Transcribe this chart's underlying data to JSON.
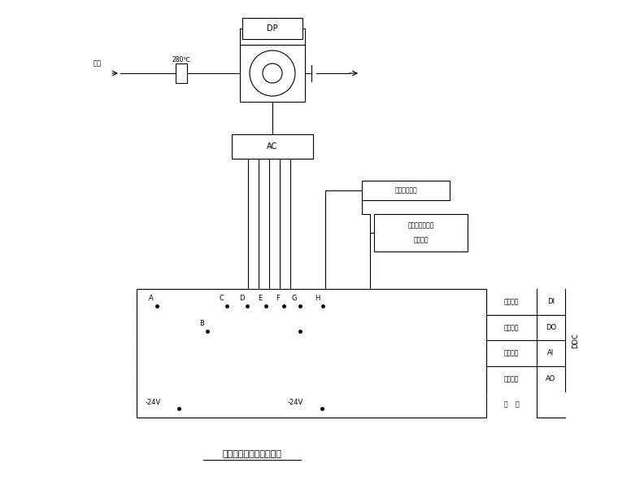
{
  "title": "消防排烟风机自控原理图",
  "bg_color": "#ffffff",
  "line_color": "#000000",
  "fan_label": "AC",
  "dp_label": "DP",
  "temp_label": "280℃",
  "smoke_label": "排烟",
  "elec_control_label": "电动调节阀口",
  "fire_control_label1": "消防火灾控制室",
  "fire_control_label2": "火灾信号",
  "row1_label": "数字输入",
  "row1_code": "DI",
  "row2_label": "数字输出",
  "row2_code": "DO",
  "row3_label": "模拟输入",
  "row3_code": "AI",
  "row4_label": "模拟输出",
  "row4_code": "AO",
  "row5_label": "电    源",
  "ddc_label": "DDC",
  "power1_label": "-24V",
  "power2_label": "-24V"
}
